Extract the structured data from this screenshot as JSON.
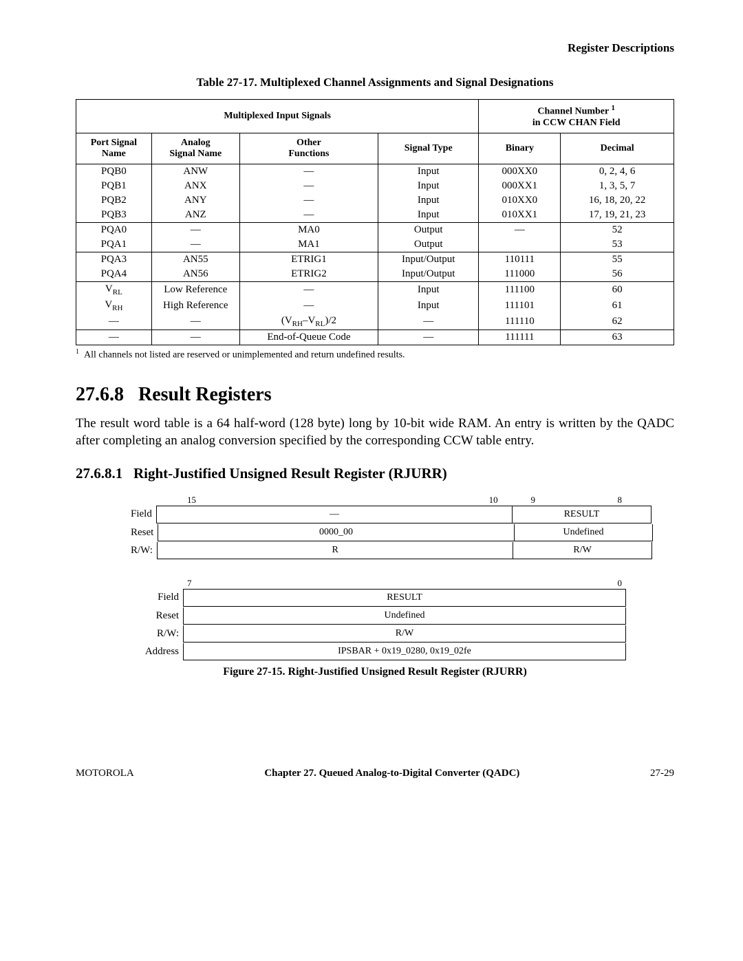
{
  "header": {
    "section": "Register Descriptions"
  },
  "table": {
    "caption": "Table 27-17. Multiplexed Channel Assignments and Signal Designations",
    "top_headers": {
      "mux": "Multiplexed Input Signals",
      "chan_a": "Channel Number",
      "chan_b": "in CCW CHAN Field",
      "chan_sup": "1"
    },
    "sub_headers": {
      "port": "Port Signal Name",
      "analog": "Analog Signal Name",
      "other": "Other Functions",
      "sigtype": "Signal Type",
      "binary": "Binary",
      "decimal": "Decimal"
    },
    "groups": [
      {
        "rows": [
          {
            "port": "PQB0",
            "analog": "ANW",
            "other": "—",
            "sigtype": "Input",
            "binary": "000XX0",
            "decimal": "0, 2, 4, 6"
          },
          {
            "port": "PQB1",
            "analog": "ANX",
            "other": "—",
            "sigtype": "Input",
            "binary": "000XX1",
            "decimal": "1, 3, 5, 7"
          },
          {
            "port": "PQB2",
            "analog": "ANY",
            "other": "—",
            "sigtype": "Input",
            "binary": "010XX0",
            "decimal": "16, 18, 20, 22"
          },
          {
            "port": "PQB3",
            "analog": "ANZ",
            "other": "—",
            "sigtype": "Input",
            "binary": "010XX1",
            "decimal": "17, 19, 21, 23"
          }
        ]
      },
      {
        "rows": [
          {
            "port": "PQA0",
            "analog": "—",
            "other": "MA0",
            "sigtype": "Output",
            "binary": "—",
            "decimal": "52"
          },
          {
            "port": "PQA1",
            "analog": "—",
            "other": "MA1",
            "sigtype": "Output",
            "binary": "",
            "decimal": "53"
          }
        ]
      },
      {
        "rows": [
          {
            "port": "PQA3",
            "analog": "AN55",
            "other": "ETRIG1",
            "sigtype": "Input/Output",
            "binary": "110111",
            "decimal": "55"
          },
          {
            "port": "PQA4",
            "analog": "AN56",
            "other": "ETRIG2",
            "sigtype": "Input/Output",
            "binary": "111000",
            "decimal": "56"
          }
        ]
      },
      {
        "rows": [
          {
            "port": "V_RL",
            "analog": "Low Reference",
            "other": "—",
            "sigtype": "Input",
            "binary": "111100",
            "decimal": "60"
          },
          {
            "port": "V_RH",
            "analog": "High Reference",
            "other": "—",
            "sigtype": "Input",
            "binary": "111101",
            "decimal": "61"
          },
          {
            "port": "—",
            "analog": "—",
            "other": "VRHVRL2",
            "sigtype": "—",
            "binary": "111110",
            "decimal": "62"
          }
        ]
      },
      {
        "rows": [
          {
            "port": "—",
            "analog": "—",
            "other": "End-of-Queue Code",
            "sigtype": "—",
            "binary": "111111",
            "decimal": "63"
          }
        ]
      }
    ],
    "footnote_marker": "1",
    "footnote": "All channels not listed are reserved or unimplemented and return undefined results."
  },
  "section": {
    "num": "27.6.8",
    "title": "Result Registers",
    "body": "The result word table is a 64 half-word (128 byte) long by 10-bit wide RAM. An entry is written by the QADC after completing an analog conversion specified by the corresponding CCW table entry."
  },
  "subsection": {
    "num": "27.6.8.1",
    "title": "Right-Justified Unsigned Result Register (RJURR)"
  },
  "reg1": {
    "bits": {
      "b15": "15",
      "b10": "10",
      "b9": "9",
      "b8": "8"
    },
    "field_label": "Field",
    "field_a": "—",
    "field_b": "RESULT",
    "reset_label": "Reset",
    "reset_a": "0000_00",
    "reset_b": "Undefined",
    "rw_label": "R/W:",
    "rw_a": "R",
    "rw_b": "R/W"
  },
  "reg2": {
    "bits": {
      "b7": "7",
      "b0": "0"
    },
    "field_label": "Field",
    "field": "RESULT",
    "reset_label": "Reset",
    "reset": "Undefined",
    "rw_label": "R/W:",
    "rw": "R/W",
    "addr_label": "Address",
    "addr": "IPSBAR + 0x19_0280, 0x19_02fe"
  },
  "figure_caption": "Figure 27-15. Right-Justified Unsigned Result Register (RJURR)",
  "footer": {
    "left": "MOTOROLA",
    "mid": "Chapter 27.  Queued Analog-to-Digital Converter (QADC)",
    "right": "27-29"
  }
}
